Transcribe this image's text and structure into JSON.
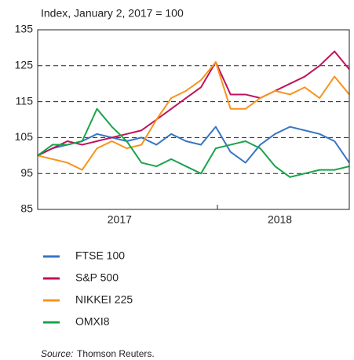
{
  "chart_data": {
    "type": "line",
    "title": "Index, January 2, 2017 = 100",
    "x": [
      2017.0,
      2017.083,
      2017.167,
      2017.25,
      2017.333,
      2017.417,
      2017.5,
      2017.583,
      2017.667,
      2017.75,
      2017.833,
      2017.917,
      2018.0,
      2018.083,
      2018.167,
      2018.25,
      2018.333,
      2018.417,
      2018.5,
      2018.583,
      2018.667,
      2018.75
    ],
    "xlim": [
      2017.0,
      2018.75
    ],
    "xticks": [
      {
        "value": 2017.46,
        "label": "2017"
      },
      {
        "value": 2018.36,
        "label": "2018"
      }
    ],
    "ylim": [
      85,
      135
    ],
    "yticks": [
      85,
      95,
      105,
      115,
      125,
      135
    ],
    "grid": true,
    "series": [
      {
        "name": "FTSE 100",
        "color": "#3a75c4",
        "values": [
          100,
          102,
          103,
          104,
          106,
          105,
          104,
          105,
          103,
          106,
          104,
          103,
          108,
          101,
          98,
          103,
          106,
          108,
          107,
          106,
          104,
          98
        ]
      },
      {
        "name": "S&P 500",
        "color": "#c0135c",
        "values": [
          100,
          102,
          104,
          103,
          104,
          105,
          106,
          107,
          110,
          113,
          116,
          119,
          126,
          117,
          117,
          116,
          118,
          120,
          122,
          125,
          129,
          124
        ]
      },
      {
        "name": "NIKKEI 225",
        "color": "#f7941d",
        "values": [
          100,
          99,
          98,
          96,
          102,
          104,
          102,
          103,
          110,
          116,
          118,
          121,
          126,
          113,
          113,
          116,
          118,
          117,
          119,
          116,
          122,
          117
        ]
      },
      {
        "name": "OMXI8",
        "color": "#1aa34a",
        "values": [
          100,
          103,
          103,
          104,
          113,
          108,
          104,
          98,
          97,
          99,
          97,
          95,
          102,
          103,
          104,
          102,
          97,
          94,
          95,
          96,
          96,
          97
        ]
      }
    ],
    "source_label": "Source:",
    "source": "Thomson Reuters."
  }
}
